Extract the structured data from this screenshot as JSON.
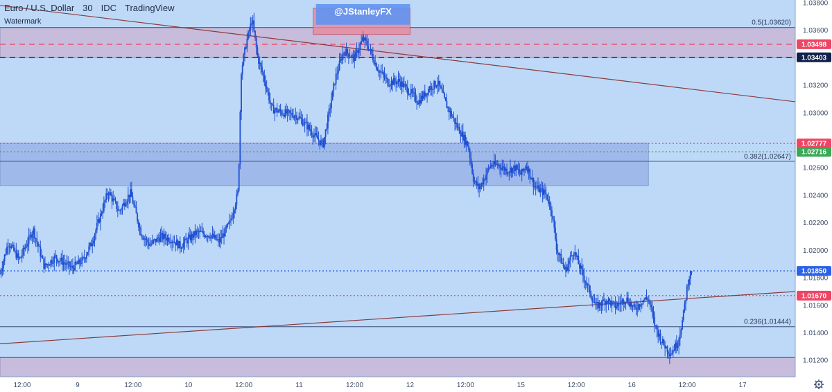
{
  "header": {
    "symbol": "Euro / U.S. Dollar",
    "interval": "30",
    "exchange": "IDC",
    "platform": "TradingView",
    "watermark": "Watermark",
    "handle": "@JStanleyFX"
  },
  "colors": {
    "background": "#bdd9f7",
    "candle": "#1f4fd1",
    "trendline": "#8a3b3b",
    "zone_upper": "#c9b8d8",
    "zone_mid": "#9cb4ea",
    "zone_lower": "#c9b8d8",
    "badge_red": "#ef4565",
    "badge_navy": "#12214a",
    "badge_blue": "#2a62e8",
    "badge_green": "#3aa856"
  },
  "chart_data": {
    "type": "candlestick",
    "ylim": [
      1.0108,
      1.0382
    ],
    "y_ticks": [
      "1.03800",
      "1.03600",
      "1.03200",
      "1.03000",
      "1.02600",
      "1.02400",
      "1.02200",
      "1.02000",
      "1.01800",
      "1.01600",
      "1.01400",
      "1.01200"
    ],
    "x_ticks": [
      {
        "t": "12:00",
        "x": 0.5
      },
      {
        "t": "9",
        "x": 1.5
      },
      {
        "t": "12:00",
        "x": 2.5
      },
      {
        "t": "10",
        "x": 3.5
      },
      {
        "t": "12:00",
        "x": 4.5
      },
      {
        "t": "11",
        "x": 5.5
      },
      {
        "t": "12:00",
        "x": 6.5
      },
      {
        "t": "12",
        "x": 7.5
      },
      {
        "t": "12:00",
        "x": 8.5
      },
      {
        "t": "15",
        "x": 9.5
      },
      {
        "t": "12:00",
        "x": 10.5
      },
      {
        "t": "16",
        "x": 11.5
      },
      {
        "t": "12:00",
        "x": 12.5
      },
      {
        "t": "17",
        "x": 13.5
      }
    ],
    "xlim": [
      0.1,
      14.45
    ],
    "price_path": [
      [
        0.1,
        1.0183
      ],
      [
        0.25,
        1.0206
      ],
      [
        0.45,
        1.0193
      ],
      [
        0.7,
        1.0215
      ],
      [
        0.9,
        1.0188
      ],
      [
        1.1,
        1.0195
      ],
      [
        1.4,
        1.0187
      ],
      [
        1.6,
        1.0193
      ],
      [
        1.75,
        1.0205
      ],
      [
        1.95,
        1.023
      ],
      [
        2.05,
        1.0243
      ],
      [
        2.25,
        1.0228
      ],
      [
        2.45,
        1.0242
      ],
      [
        2.65,
        1.0212
      ],
      [
        2.8,
        1.0204
      ],
      [
        3.0,
        1.021
      ],
      [
        3.2,
        1.0208
      ],
      [
        3.35,
        1.0203
      ],
      [
        3.5,
        1.0208
      ],
      [
        3.65,
        1.0213
      ],
      [
        3.9,
        1.0211
      ],
      [
        4.05,
        1.0206
      ],
      [
        4.25,
        1.022
      ],
      [
        4.4,
        1.0243
      ],
      [
        4.45,
        1.033
      ],
      [
        4.55,
        1.0352
      ],
      [
        4.65,
        1.0368
      ],
      [
        4.75,
        1.034
      ],
      [
        4.9,
        1.032
      ],
      [
        5.0,
        1.0303
      ],
      [
        5.2,
        1.03
      ],
      [
        5.45,
        1.0298
      ],
      [
        5.65,
        1.029
      ],
      [
        5.8,
        1.0282
      ],
      [
        5.93,
        1.0277
      ],
      [
        6.05,
        1.0303
      ],
      [
        6.15,
        1.0325
      ],
      [
        6.3,
        1.0345
      ],
      [
        6.5,
        1.034
      ],
      [
        6.65,
        1.0354
      ],
      [
        6.75,
        1.0348
      ],
      [
        6.9,
        1.0333
      ],
      [
        7.1,
        1.0322
      ],
      [
        7.3,
        1.0323
      ],
      [
        7.5,
        1.0315
      ],
      [
        7.65,
        1.0308
      ],
      [
        7.85,
        1.0318
      ],
      [
        8.0,
        1.0322
      ],
      [
        8.15,
        1.0306
      ],
      [
        8.35,
        1.029
      ],
      [
        8.55,
        1.0276
      ],
      [
        8.65,
        1.025
      ],
      [
        8.75,
        1.0245
      ],
      [
        8.95,
        1.0262
      ],
      [
        9.1,
        1.0262
      ],
      [
        9.25,
        1.0258
      ],
      [
        9.4,
        1.026
      ],
      [
        9.5,
        1.0255
      ],
      [
        9.6,
        1.0262
      ],
      [
        9.75,
        1.0246
      ],
      [
        9.95,
        1.0241
      ],
      [
        10.05,
        1.023
      ],
      [
        10.15,
        1.02
      ],
      [
        10.3,
        1.0185
      ],
      [
        10.45,
        1.02
      ],
      [
        10.55,
        1.0189
      ],
      [
        10.7,
        1.0174
      ],
      [
        10.85,
        1.0159
      ],
      [
        11.05,
        1.0164
      ],
      [
        11.2,
        1.0159
      ],
      [
        11.4,
        1.0165
      ],
      [
        11.55,
        1.0157
      ],
      [
        11.7,
        1.0164
      ],
      [
        11.8,
        1.0165
      ],
      [
        11.92,
        1.0145
      ],
      [
        12.05,
        1.0133
      ],
      [
        12.2,
        1.0125
      ],
      [
        12.33,
        1.0133
      ],
      [
        12.42,
        1.015
      ],
      [
        12.52,
        1.0179
      ],
      [
        12.58,
        1.0185
      ]
    ],
    "levels": [
      {
        "id": "fib-05",
        "price": 1.0362,
        "label": "0.5(1.03620)",
        "style": "solid",
        "color": "#3d4a7a"
      },
      {
        "id": "lvl-103498",
        "price": 1.03498,
        "label": "",
        "style": "dashed",
        "color": "#ef4565"
      },
      {
        "id": "lvl-103403",
        "price": 1.03403,
        "label": "",
        "style": "dashed",
        "color": "#12214a"
      },
      {
        "id": "lvl-102777",
        "price": 1.02777,
        "label": "",
        "style": "dotted",
        "color": "#ef4565"
      },
      {
        "id": "lvl-102716",
        "price": 1.02716,
        "label": "",
        "style": "dotted",
        "color": "#3aa856"
      },
      {
        "id": "fib-0382",
        "price": 1.02647,
        "label": "0.382(1.02647)",
        "style": "solid",
        "color": "#3d4a7a"
      },
      {
        "id": "lvl-101850",
        "price": 1.0185,
        "label": "",
        "style": "dotted",
        "color": "#2a62e8"
      },
      {
        "id": "lvl-101670",
        "price": 1.0167,
        "label": "",
        "style": "dotted",
        "color": "#ef4565"
      },
      {
        "id": "fib-0236",
        "price": 1.01444,
        "label": "0.236(1.01444)",
        "style": "solid",
        "color": "#3d4a7a"
      },
      {
        "id": "lvl-101220",
        "price": 1.0122,
        "label": "",
        "style": "solid",
        "color": "#3d4a7a"
      }
    ],
    "badges": [
      {
        "price": 1.03498,
        "text": "1.03498",
        "color": "#ef4565"
      },
      {
        "price": 1.03403,
        "text": "1.03403",
        "color": "#12214a"
      },
      {
        "price": 1.02777,
        "text": "1.02777",
        "color": "#ef4565"
      },
      {
        "price": 1.02716,
        "text": "1.02716",
        "color": "#3aa856"
      },
      {
        "price": 1.0185,
        "text": "1.01850",
        "color": "#2a62e8"
      },
      {
        "price": 1.0167,
        "text": "1.01670",
        "color": "#ef4565"
      }
    ],
    "zones": [
      {
        "id": "zone-upper",
        "y1": 1.0362,
        "y2": 1.034,
        "x1": 0.1,
        "x2": 14.45,
        "color": "#c9b8d8",
        "opacity": 0.85
      },
      {
        "id": "zone-mid",
        "y1": 1.0278,
        "y2": 1.0247,
        "x1": 0.1,
        "x2": 11.8,
        "color": "#9cb4ea",
        "opacity": 0.85
      },
      {
        "id": "zone-lower",
        "y1": 1.0122,
        "y2": 1.0108,
        "x1": 0.1,
        "x2": 14.45,
        "color": "#c9b8d8",
        "opacity": 0.85
      }
    ],
    "trendlines": [
      {
        "id": "trend-down",
        "x1": 0.1,
        "y1": 1.0378,
        "x2": 14.45,
        "y2": 1.0308
      },
      {
        "id": "trend-up",
        "x1": 0.1,
        "y1": 1.0132,
        "x2": 14.45,
        "y2": 1.017
      }
    ],
    "handle_box": {
      "x1": 5.8,
      "x2": 7.5,
      "y1": 1.0379,
      "y2": 1.0364
    },
    "red_box": {
      "x1": 5.75,
      "x2": 7.5,
      "y1": 1.0376,
      "y2": 1.0357
    }
  }
}
